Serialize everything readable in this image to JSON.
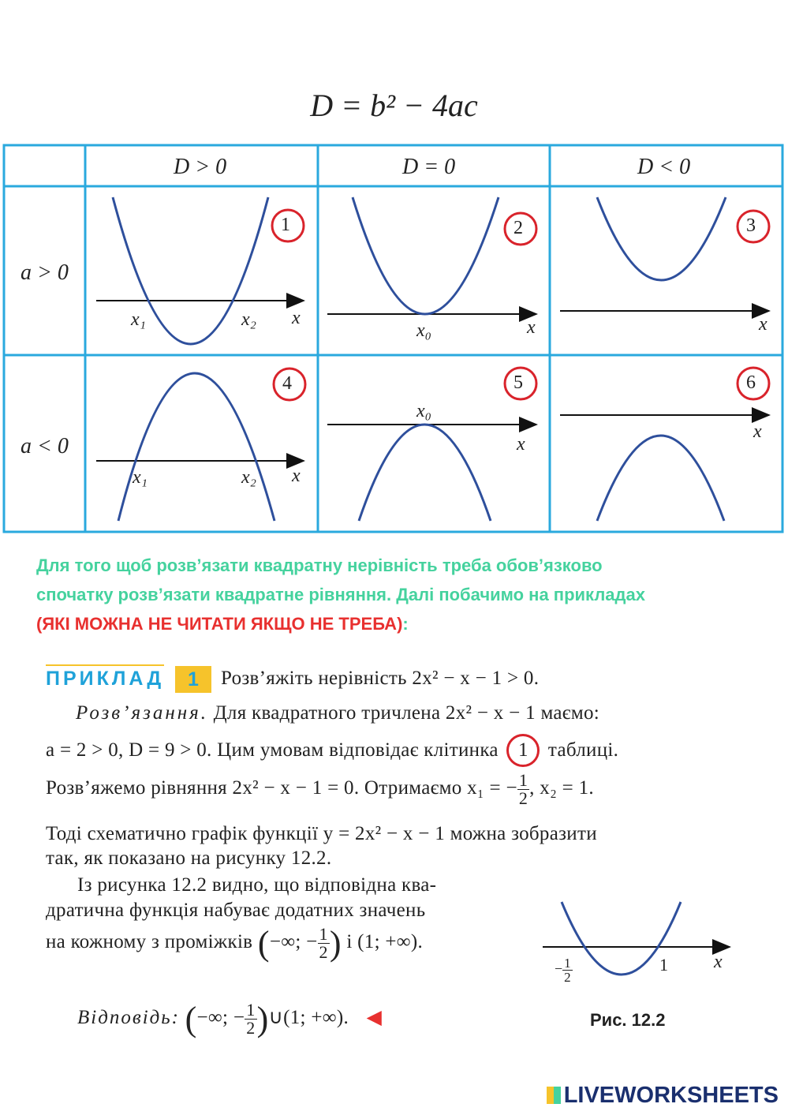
{
  "formula": "D = b² − 4ac",
  "table": {
    "headers": [
      "D > 0",
      "D = 0",
      "D < 0"
    ],
    "rows": [
      "a > 0",
      "a < 0"
    ],
    "cell_numbers": [
      "1",
      "2",
      "3",
      "4",
      "5",
      "6"
    ],
    "labels": {
      "x1": "x₁",
      "x2": "x₂",
      "x0": "x₀",
      "x": "x"
    }
  },
  "colors": {
    "border": "#2aa9de",
    "curve": "#2e4f9c",
    "circle": "#d9232b",
    "note": "#45d29e",
    "warning": "#e8302f",
    "accent": "#1fa2d9",
    "badge": "#f6c32b"
  },
  "note": {
    "line1": "Для того щоб розв’язати квадратну нерівність треба обов’язково",
    "line2": "спочатку розв’язати квадратне рівняння. Далі побачимо на прикладах",
    "warning": "(ЯКІ МОЖНА НЕ ЧИТАТИ ЯКЩО НЕ ТРЕБА)",
    "colon": ":"
  },
  "example": {
    "label": "ПРИКЛАД",
    "number": "1",
    "task": "Розв’яжіть нерівність 2x² − x − 1 > 0.",
    "sol_label": "Розв’язання.",
    "sol_line1": " Для квадратного тричлена 2x² − x − 1 маємо:",
    "sol_line2a": "a = 2 > 0, D = 9 > 0. Цим умовам відповідає клітинка",
    "sol_cell": "1",
    "sol_line2b": "таблиці.",
    "sol_line3a": "Розв’яжемо рівняння 2x² − x − 1 = 0. Отримаємо  x₁ = −",
    "frac_num": "1",
    "frac_den": "2",
    "sol_line3b": ",  x₂ = 1.",
    "sol_line4": "Тоді схематично графік функції y = 2x² − x − 1 можна зобразити",
    "sol_line5": "так, як показано на рисунку 12.2.",
    "sol_line6": "Із рисунка 12.2 видно, що відповідна ква-",
    "sol_line7": "дратична функція набуває додатних значень",
    "sol_line8a": "на кожному з проміжків",
    "interval1": "−∞; −",
    "sol_line8b": "і (1; +∞).",
    "answer_label": "Відповідь:",
    "answer_a": "−∞; −",
    "answer_b": "∪(1; +∞).",
    "figure_caption": "Рис. 12.2",
    "fig_root1": "1",
    "fig_x": "x"
  },
  "watermark": "LIVEWORKSHEETS"
}
